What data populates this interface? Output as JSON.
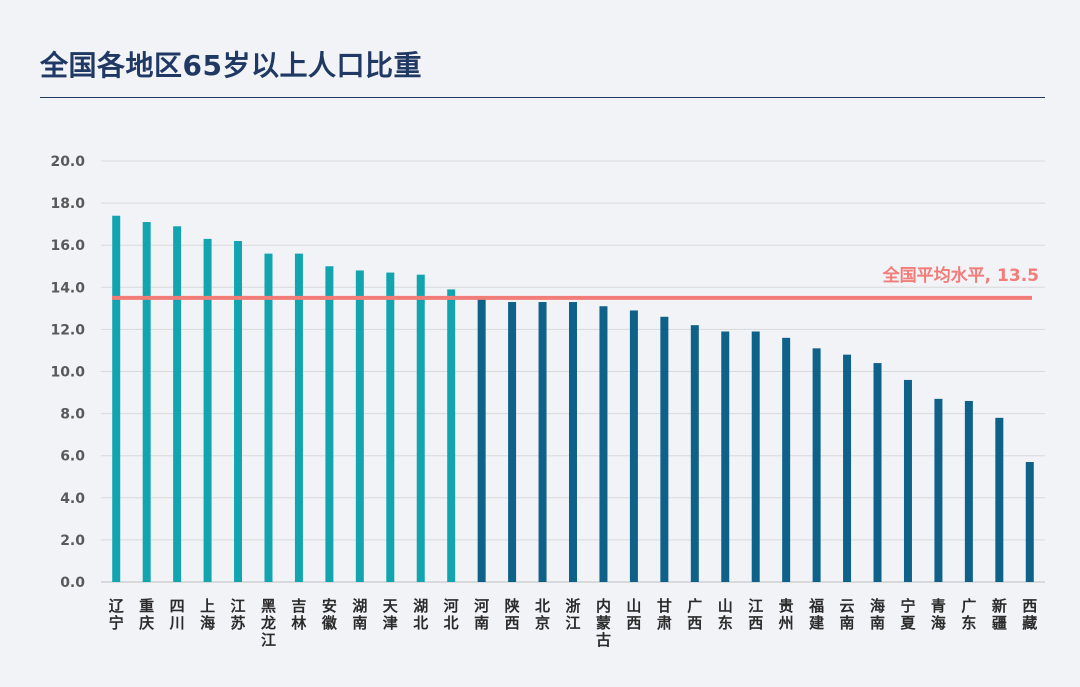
{
  "title": "全国各地区65岁以上人口比重",
  "colors": {
    "above_avg": "#12a5b0",
    "below_avg": "#0e6189",
    "avg_line": "#f27c78",
    "grid": "#d9d9d9",
    "title": "#1f3864"
  },
  "chart_data": {
    "type": "bar",
    "title": "全国各地区65岁以上人口比重",
    "xlabel": "",
    "ylabel": "",
    "ylim": [
      0,
      20
    ],
    "yticks": [
      "0.0",
      "2.0",
      "4.0",
      "6.0",
      "8.0",
      "10.0",
      "12.0",
      "14.0",
      "16.0",
      "18.0",
      "20.0"
    ],
    "grid": true,
    "categories": [
      "辽宁",
      "重庆",
      "四川",
      "上海",
      "江苏",
      "黑龙江",
      "吉林",
      "安徽",
      "湖南",
      "天津",
      "湖北",
      "河北",
      "河南",
      "陕西",
      "北京",
      "浙江",
      "内蒙古",
      "山西",
      "甘肃",
      "广西",
      "山东",
      "江西",
      "贵州",
      "福建",
      "云南",
      "海南",
      "宁夏",
      "青海",
      "广东",
      "新疆",
      "西藏"
    ],
    "values": [
      17.4,
      17.1,
      16.9,
      16.3,
      16.2,
      15.6,
      15.6,
      15.0,
      14.8,
      14.7,
      14.6,
      13.9,
      13.5,
      13.3,
      13.3,
      13.3,
      13.1,
      12.9,
      12.6,
      12.2,
      11.9,
      11.9,
      11.6,
      11.1,
      10.8,
      10.4,
      9.6,
      8.7,
      8.6,
      7.8,
      5.7
    ],
    "reference_line": {
      "value": 13.5,
      "label": "全国平均水平, 13.5"
    }
  }
}
